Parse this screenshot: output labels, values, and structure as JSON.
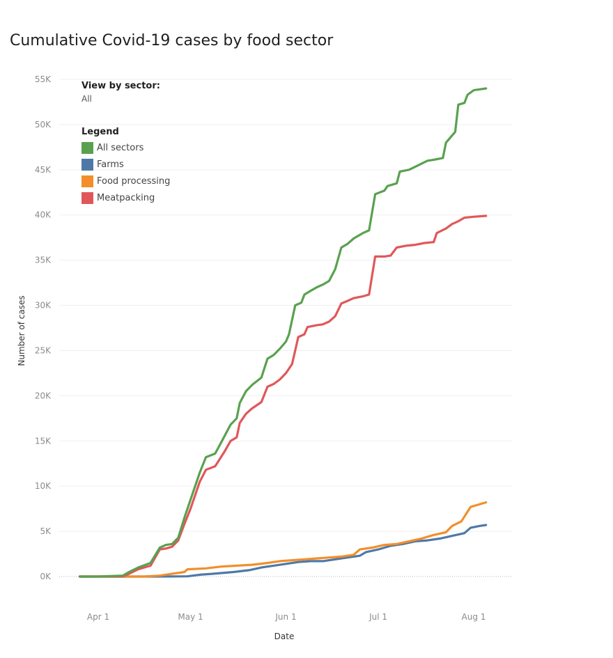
{
  "chart_data": {
    "type": "line",
    "title": "Cumulative Covid-19 cases by food sector",
    "xlabel": "Date",
    "ylabel": "Number of cases",
    "ylim": [
      0,
      55000
    ],
    "y_ticks": [
      {
        "value": 0,
        "label": "0K"
      },
      {
        "value": 5000,
        "label": "5K"
      },
      {
        "value": 10000,
        "label": "10K"
      },
      {
        "value": 15000,
        "label": "15K"
      },
      {
        "value": 20000,
        "label": "20K"
      },
      {
        "value": 25000,
        "label": "25K"
      },
      {
        "value": 30000,
        "label": "30K"
      },
      {
        "value": 35000,
        "label": "35K"
      },
      {
        "value": 40000,
        "label": "40K"
      },
      {
        "value": 45000,
        "label": "45K"
      },
      {
        "value": 50000,
        "label": "50K"
      },
      {
        "value": 55000,
        "label": "55K"
      }
    ],
    "x_range_days": [
      -10,
      131
    ],
    "x_ticks": [
      {
        "day": 0,
        "label": "Apr 1"
      },
      {
        "day": 30,
        "label": "May 1"
      },
      {
        "day": 61,
        "label": "Jun 1"
      },
      {
        "day": 91,
        "label": "Jul 1"
      },
      {
        "day": 122,
        "label": "Aug 1"
      }
    ],
    "grid": true,
    "legend_title": "Legend",
    "filter": {
      "heading": "View by sector:",
      "value": "All"
    },
    "series": [
      {
        "name": "All sectors",
        "color": "#59a14f",
        "points": [
          [
            -6,
            0
          ],
          [
            0,
            0
          ],
          [
            8,
            100
          ],
          [
            10,
            500
          ],
          [
            13,
            1000
          ],
          [
            17,
            1500
          ],
          [
            20,
            3200
          ],
          [
            22,
            3500
          ],
          [
            24,
            3600
          ],
          [
            26,
            4300
          ],
          [
            28,
            6500
          ],
          [
            30,
            8500
          ],
          [
            33,
            11500
          ],
          [
            35,
            13200
          ],
          [
            38,
            13600
          ],
          [
            41,
            15500
          ],
          [
            43,
            16800
          ],
          [
            45,
            17500
          ],
          [
            46,
            19200
          ],
          [
            48,
            20500
          ],
          [
            50,
            21200
          ],
          [
            53,
            22000
          ],
          [
            55,
            24100
          ],
          [
            57,
            24500
          ],
          [
            59,
            25200
          ],
          [
            61,
            26000
          ],
          [
            62,
            26800
          ],
          [
            64,
            30000
          ],
          [
            66,
            30300
          ],
          [
            67,
            31200
          ],
          [
            69,
            31600
          ],
          [
            71,
            32000
          ],
          [
            73,
            32300
          ],
          [
            75,
            32700
          ],
          [
            77,
            34000
          ],
          [
            79,
            36400
          ],
          [
            81,
            36800
          ],
          [
            83,
            37400
          ],
          [
            86,
            38000
          ],
          [
            88,
            38300
          ],
          [
            90,
            42300
          ],
          [
            93,
            42700
          ],
          [
            94,
            43200
          ],
          [
            97,
            43500
          ],
          [
            98,
            44800
          ],
          [
            101,
            45000
          ],
          [
            104,
            45500
          ],
          [
            107,
            46000
          ],
          [
            109,
            46100
          ],
          [
            112,
            46300
          ],
          [
            113,
            48000
          ],
          [
            116,
            49200
          ],
          [
            117,
            52200
          ],
          [
            119,
            52400
          ],
          [
            120,
            53300
          ],
          [
            122,
            53800
          ],
          [
            126,
            54000
          ]
        ]
      },
      {
        "name": "Farms",
        "color": "#4e79a7",
        "points": [
          [
            -6,
            0
          ],
          [
            0,
            0
          ],
          [
            20,
            0
          ],
          [
            29,
            20
          ],
          [
            33,
            200
          ],
          [
            37,
            300
          ],
          [
            44,
            500
          ],
          [
            49,
            700
          ],
          [
            53,
            1000
          ],
          [
            57,
            1200
          ],
          [
            61,
            1400
          ],
          [
            65,
            1600
          ],
          [
            69,
            1700
          ],
          [
            73,
            1700
          ],
          [
            77,
            1900
          ],
          [
            81,
            2100
          ],
          [
            85,
            2300
          ],
          [
            87,
            2700
          ],
          [
            91,
            3000
          ],
          [
            95,
            3400
          ],
          [
            99,
            3600
          ],
          [
            103,
            3900
          ],
          [
            107,
            4000
          ],
          [
            111,
            4200
          ],
          [
            115,
            4500
          ],
          [
            119,
            4800
          ],
          [
            121,
            5400
          ],
          [
            124,
            5600
          ],
          [
            126,
            5700
          ]
        ]
      },
      {
        "name": "Food processing",
        "color": "#f28e2b",
        "points": [
          [
            -6,
            0
          ],
          [
            0,
            0
          ],
          [
            15,
            0
          ],
          [
            20,
            100
          ],
          [
            24,
            300
          ],
          [
            28,
            500
          ],
          [
            29,
            800
          ],
          [
            35,
            900
          ],
          [
            40,
            1100
          ],
          [
            45,
            1200
          ],
          [
            50,
            1300
          ],
          [
            55,
            1500
          ],
          [
            59,
            1700
          ],
          [
            63,
            1800
          ],
          [
            67,
            1900
          ],
          [
            71,
            2000
          ],
          [
            75,
            2100
          ],
          [
            79,
            2200
          ],
          [
            83,
            2400
          ],
          [
            85,
            3000
          ],
          [
            89,
            3200
          ],
          [
            93,
            3500
          ],
          [
            97,
            3600
          ],
          [
            101,
            3900
          ],
          [
            105,
            4200
          ],
          [
            109,
            4600
          ],
          [
            113,
            4900
          ],
          [
            115,
            5600
          ],
          [
            118,
            6100
          ],
          [
            121,
            7700
          ],
          [
            124,
            8000
          ],
          [
            126,
            8200
          ]
        ]
      },
      {
        "name": "Meatpacking",
        "color": "#e15759",
        "points": [
          [
            -6,
            0
          ],
          [
            0,
            0
          ],
          [
            8,
            0
          ],
          [
            10,
            300
          ],
          [
            13,
            800
          ],
          [
            17,
            1200
          ],
          [
            20,
            3000
          ],
          [
            22,
            3100
          ],
          [
            24,
            3300
          ],
          [
            26,
            4000
          ],
          [
            28,
            5800
          ],
          [
            30,
            7500
          ],
          [
            33,
            10500
          ],
          [
            35,
            11800
          ],
          [
            38,
            12200
          ],
          [
            41,
            13800
          ],
          [
            43,
            15000
          ],
          [
            45,
            15400
          ],
          [
            46,
            17000
          ],
          [
            48,
            18000
          ],
          [
            50,
            18600
          ],
          [
            53,
            19300
          ],
          [
            55,
            21000
          ],
          [
            57,
            21300
          ],
          [
            59,
            21800
          ],
          [
            61,
            22500
          ],
          [
            63,
            23500
          ],
          [
            65,
            26500
          ],
          [
            67,
            26800
          ],
          [
            68,
            27600
          ],
          [
            71,
            27800
          ],
          [
            73,
            27900
          ],
          [
            75,
            28200
          ],
          [
            77,
            28800
          ],
          [
            79,
            30200
          ],
          [
            81,
            30500
          ],
          [
            83,
            30800
          ],
          [
            86,
            31000
          ],
          [
            88,
            31200
          ],
          [
            90,
            35400
          ],
          [
            93,
            35400
          ],
          [
            95,
            35500
          ],
          [
            97,
            36400
          ],
          [
            100,
            36600
          ],
          [
            103,
            36700
          ],
          [
            106,
            36900
          ],
          [
            109,
            37000
          ],
          [
            110,
            38000
          ],
          [
            113,
            38500
          ],
          [
            115,
            39000
          ],
          [
            117,
            39300
          ],
          [
            119,
            39700
          ],
          [
            122,
            39800
          ],
          [
            126,
            39900
          ]
        ]
      }
    ]
  }
}
